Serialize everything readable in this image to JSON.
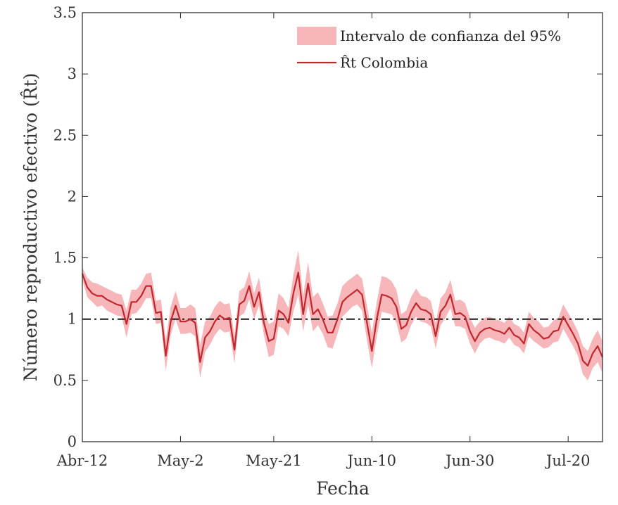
{
  "chart_data": {
    "type": "line",
    "title": "",
    "xlabel": "Fecha",
    "ylabel": "Número reproductivo efectivo (R̂t)",
    "x_start": "Abr-12",
    "x_end": "Jul-23",
    "xticks": [
      "Abr-12",
      "May-2",
      "May-21",
      "Jun-10",
      "Jun-30",
      "Jul-20"
    ],
    "yticks": [
      "0",
      "0.5",
      "1",
      "1.5",
      "2",
      "2.5",
      "3",
      "3.5"
    ],
    "ylim": [
      0,
      3.5
    ],
    "grid": false,
    "legend_position": "top-right",
    "reference_line": {
      "y": 1,
      "style": "dash-dot",
      "color": "#1a1a1a"
    },
    "series": [
      {
        "name": "R̂t Colombia",
        "color": "#c0282d",
        "values": [
          1.37,
          1.26,
          1.21,
          1.19,
          1.19,
          1.16,
          1.14,
          1.12,
          1.11,
          0.96,
          1.14,
          1.14,
          1.19,
          1.27,
          1.27,
          1.05,
          1.06,
          0.7,
          0.98,
          1.11,
          0.98,
          0.98,
          1.0,
          0.97,
          0.65,
          0.85,
          0.9,
          0.98,
          1.03,
          1.0,
          1.01,
          0.75,
          1.12,
          1.15,
          1.27,
          1.1,
          1.22,
          0.97,
          0.82,
          0.84,
          1.07,
          1.04,
          0.97,
          1.21,
          1.38,
          1.04,
          1.29,
          1.04,
          1.08,
          1.0,
          0.89,
          0.89,
          1.0,
          1.14,
          1.18,
          1.21,
          1.24,
          1.2,
          0.97,
          0.74,
          1.0,
          1.2,
          1.19,
          1.17,
          1.1,
          0.92,
          0.95,
          1.06,
          1.13,
          1.08,
          1.07,
          1.04,
          0.86,
          1.06,
          1.11,
          1.2,
          1.04,
          1.05,
          1.02,
          0.9,
          0.82,
          0.89,
          0.92,
          0.93,
          0.91,
          0.9,
          0.88,
          0.93,
          0.87,
          0.85,
          0.8,
          0.96,
          0.91,
          0.88,
          0.84,
          0.85,
          0.9,
          0.91,
          1.02,
          0.95,
          0.88,
          0.8,
          0.66,
          0.62,
          0.72,
          0.78,
          0.69
        ]
      },
      {
        "name": "Intervalo de confianza del 95%",
        "color": "#f7b6ba",
        "lower": [
          1.32,
          1.18,
          1.14,
          1.1,
          1.11,
          1.07,
          1.05,
          1.03,
          1.02,
          0.85,
          1.04,
          1.05,
          1.1,
          1.17,
          1.17,
          0.96,
          0.97,
          0.58,
          0.87,
          1.0,
          0.88,
          0.88,
          0.89,
          0.86,
          0.52,
          0.73,
          0.79,
          0.87,
          0.92,
          0.89,
          0.9,
          0.64,
          1.02,
          1.05,
          1.16,
          1.0,
          1.11,
          0.87,
          0.69,
          0.71,
          0.94,
          0.92,
          0.86,
          1.06,
          1.2,
          0.9,
          1.12,
          0.9,
          0.95,
          0.88,
          0.77,
          0.76,
          0.88,
          1.02,
          1.06,
          1.1,
          1.12,
          1.07,
          0.83,
          0.6,
          0.86,
          1.06,
          1.05,
          1.04,
          0.97,
          0.81,
          0.84,
          0.95,
          1.02,
          0.98,
          0.97,
          0.94,
          0.76,
          0.95,
          1.01,
          1.09,
          0.94,
          0.94,
          0.92,
          0.8,
          0.72,
          0.8,
          0.84,
          0.85,
          0.83,
          0.82,
          0.8,
          0.85,
          0.79,
          0.77,
          0.72,
          0.86,
          0.82,
          0.79,
          0.76,
          0.77,
          0.81,
          0.82,
          0.92,
          0.85,
          0.78,
          0.7,
          0.55,
          0.5,
          0.6,
          0.65,
          0.56
        ],
        "upper": [
          1.42,
          1.34,
          1.3,
          1.29,
          1.27,
          1.25,
          1.23,
          1.21,
          1.2,
          1.07,
          1.24,
          1.24,
          1.29,
          1.37,
          1.38,
          1.15,
          1.16,
          0.83,
          1.1,
          1.23,
          1.09,
          1.09,
          1.12,
          1.09,
          0.79,
          0.98,
          1.02,
          1.1,
          1.15,
          1.12,
          1.13,
          0.87,
          1.23,
          1.26,
          1.39,
          1.21,
          1.34,
          1.08,
          0.96,
          0.98,
          1.21,
          1.17,
          1.09,
          1.36,
          1.56,
          1.19,
          1.46,
          1.18,
          1.22,
          1.13,
          1.02,
          1.03,
          1.13,
          1.27,
          1.31,
          1.34,
          1.37,
          1.33,
          1.11,
          0.89,
          1.14,
          1.35,
          1.34,
          1.31,
          1.24,
          1.04,
          1.07,
          1.18,
          1.25,
          1.19,
          1.18,
          1.15,
          0.97,
          1.17,
          1.22,
          1.32,
          1.15,
          1.16,
          1.13,
          1.01,
          0.93,
          0.98,
          1.01,
          1.02,
          1.0,
          0.99,
          0.97,
          1.02,
          0.96,
          0.94,
          0.89,
          1.06,
          1.01,
          0.98,
          0.93,
          0.94,
          0.99,
          1.01,
          1.12,
          1.05,
          0.98,
          0.9,
          0.78,
          0.74,
          0.84,
          0.91,
          0.82
        ]
      }
    ]
  }
}
